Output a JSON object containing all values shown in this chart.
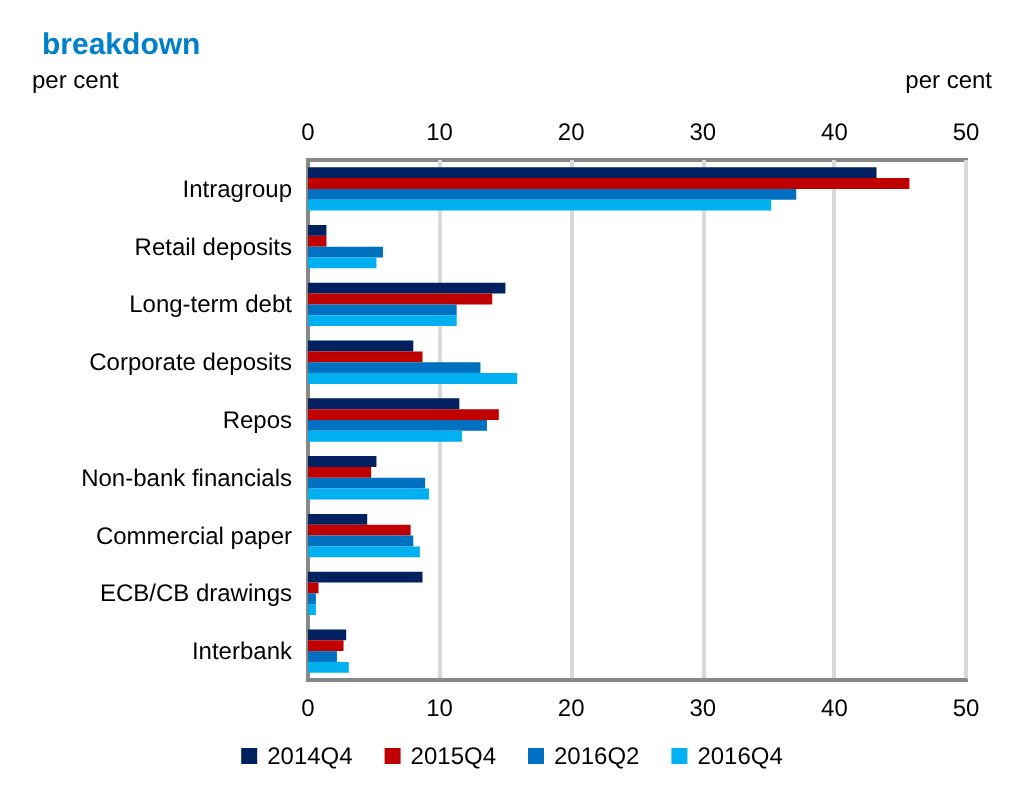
{
  "chart_data": {
    "type": "bar",
    "orientation": "horizontal",
    "title": "breakdown",
    "xlabel": "per cent",
    "x2label": "per cent",
    "categories": [
      "Intragroup",
      "Retail deposits",
      "Long-term debt",
      "Corporate deposits",
      "Repos",
      "Non-bank financials",
      "Commercial paper",
      "ECB/CB drawings",
      "Interbank"
    ],
    "series": [
      {
        "name": "2014Q4",
        "color": "#002060",
        "values": [
          43.2,
          1.4,
          15.0,
          8.0,
          11.5,
          5.2,
          4.5,
          8.7,
          2.9
        ]
      },
      {
        "name": "2015Q4",
        "color": "#c00000",
        "values": [
          45.7,
          1.4,
          14.0,
          8.7,
          14.5,
          4.8,
          7.8,
          0.8,
          2.7
        ]
      },
      {
        "name": "2016Q2",
        "color": "#0070c0",
        "values": [
          37.1,
          5.7,
          11.3,
          13.1,
          13.6,
          8.9,
          8.0,
          0.6,
          2.2
        ]
      },
      {
        "name": "2016Q4",
        "color": "#00b0f0",
        "values": [
          35.2,
          5.2,
          11.3,
          15.9,
          11.7,
          9.2,
          8.5,
          0.6,
          3.1
        ]
      }
    ],
    "xlim": [
      0,
      50
    ],
    "xticks": [
      0,
      10,
      20,
      30,
      40,
      50
    ],
    "x2lim": [
      0,
      50
    ],
    "x2ticks": [
      0,
      10,
      20,
      30,
      40,
      50
    ],
    "grid": "x",
    "legend": "bottom"
  }
}
